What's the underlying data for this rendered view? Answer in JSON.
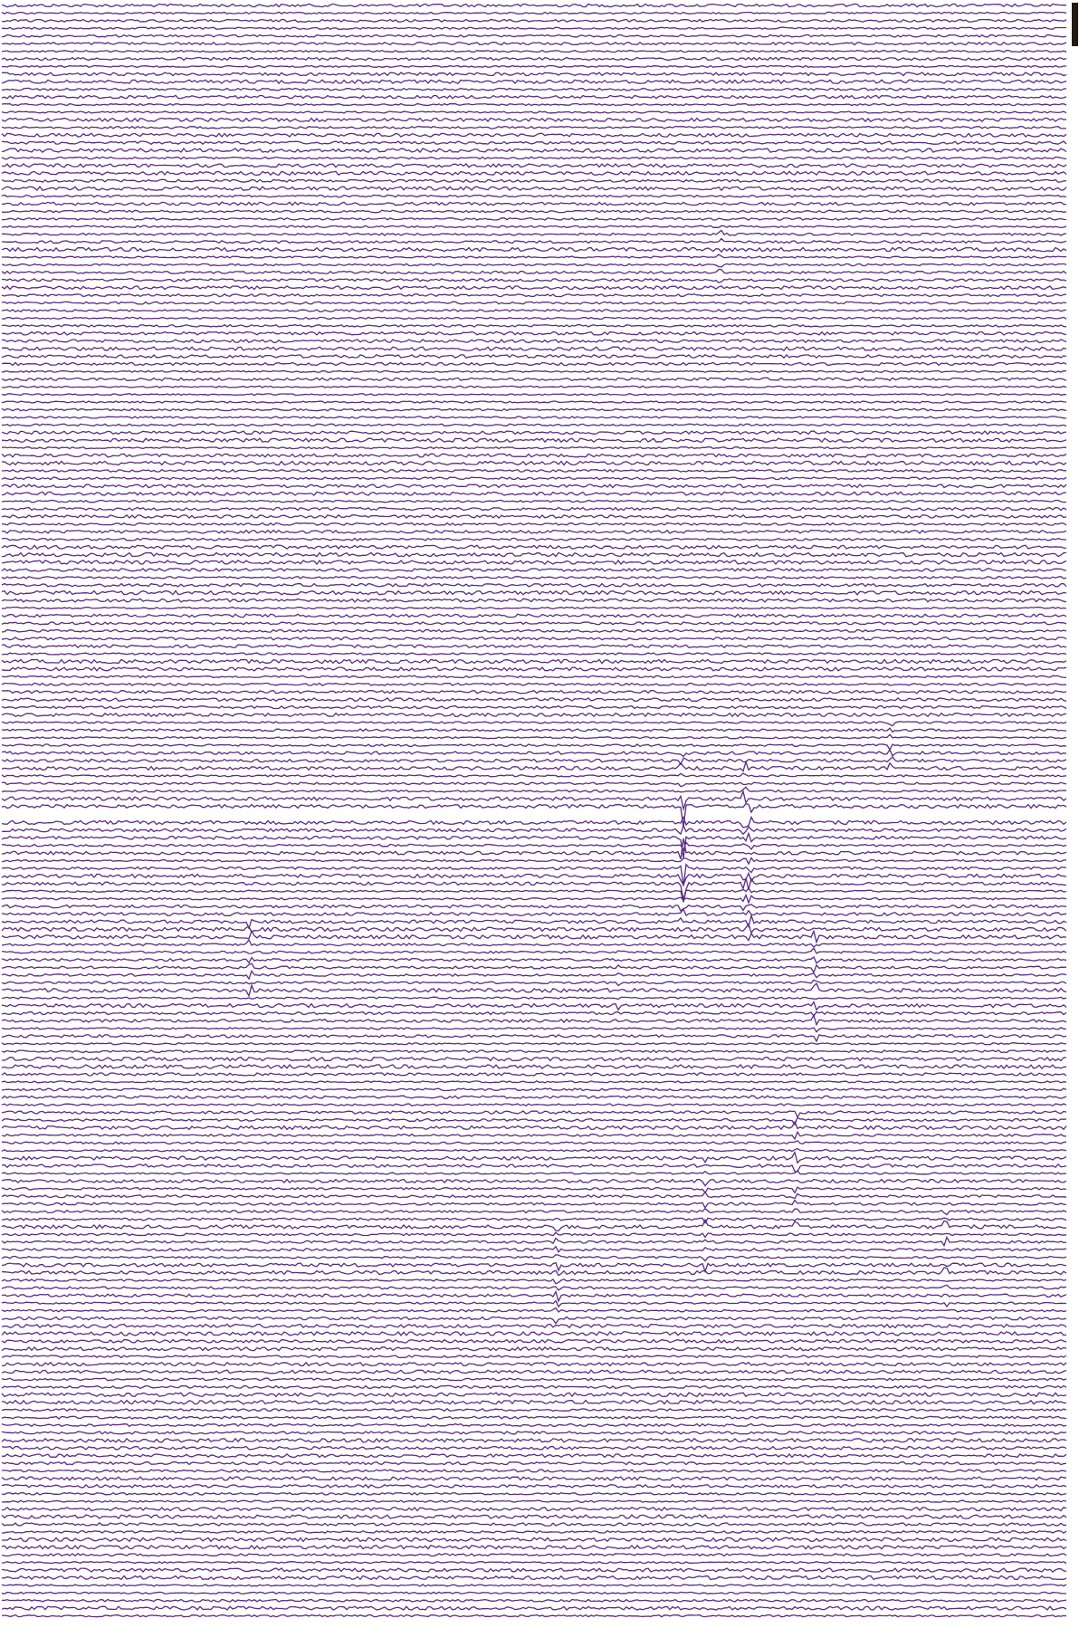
{
  "record": {
    "trace_count": 212,
    "trace_color": "#5b2a86",
    "scale_bar_color": "#231815"
  }
}
